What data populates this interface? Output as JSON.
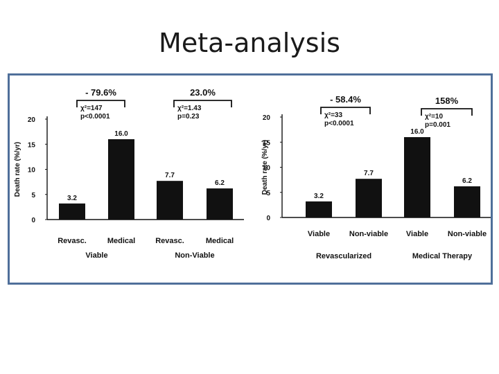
{
  "title": "Meta-analysis",
  "chart_data": [
    {
      "type": "bar",
      "ylabel": "Death rate (%/yr)",
      "ylim": [
        0,
        20
      ],
      "yticks": [
        "0",
        "5",
        "10",
        "15",
        "20"
      ],
      "categories": [
        "Revasc.",
        "Medical",
        "Revasc.",
        "Medical"
      ],
      "values": [
        3.2,
        16.0,
        7.7,
        6.2
      ],
      "value_labels": [
        "3.2",
        "16.0",
        "7.7",
        "6.2"
      ],
      "groups": [
        "Viable",
        "Non-Viable"
      ],
      "annotations": [
        {
          "change": "- 79.6%",
          "chi": "χ²=147",
          "p": "p<0.0001"
        },
        {
          "change": "23.0%",
          "chi": "χ²=1.43",
          "p": "p=0.23"
        }
      ],
      "bar_color": "#111111",
      "grid": false
    },
    {
      "type": "bar",
      "ylabel": "Death rate (%/yr)",
      "ylim": [
        0,
        20
      ],
      "yticks": [
        "0",
        "5",
        "10",
        "15",
        "20"
      ],
      "categories": [
        "Viable",
        "Non-viable",
        "Viable",
        "Non-viable"
      ],
      "values": [
        3.2,
        7.7,
        16.0,
        6.2
      ],
      "value_labels": [
        "3.2",
        "7.7",
        "16.0",
        "6.2"
      ],
      "groups": [
        "Revascularized",
        "Medical Therapy"
      ],
      "annotations": [
        {
          "change": "- 58.4%",
          "chi": "χ²=33",
          "p": "p<0.0001"
        },
        {
          "change": "158%",
          "chi": "χ²=10",
          "p": "p=0.001"
        }
      ],
      "bar_color": "#111111",
      "grid": false
    }
  ]
}
